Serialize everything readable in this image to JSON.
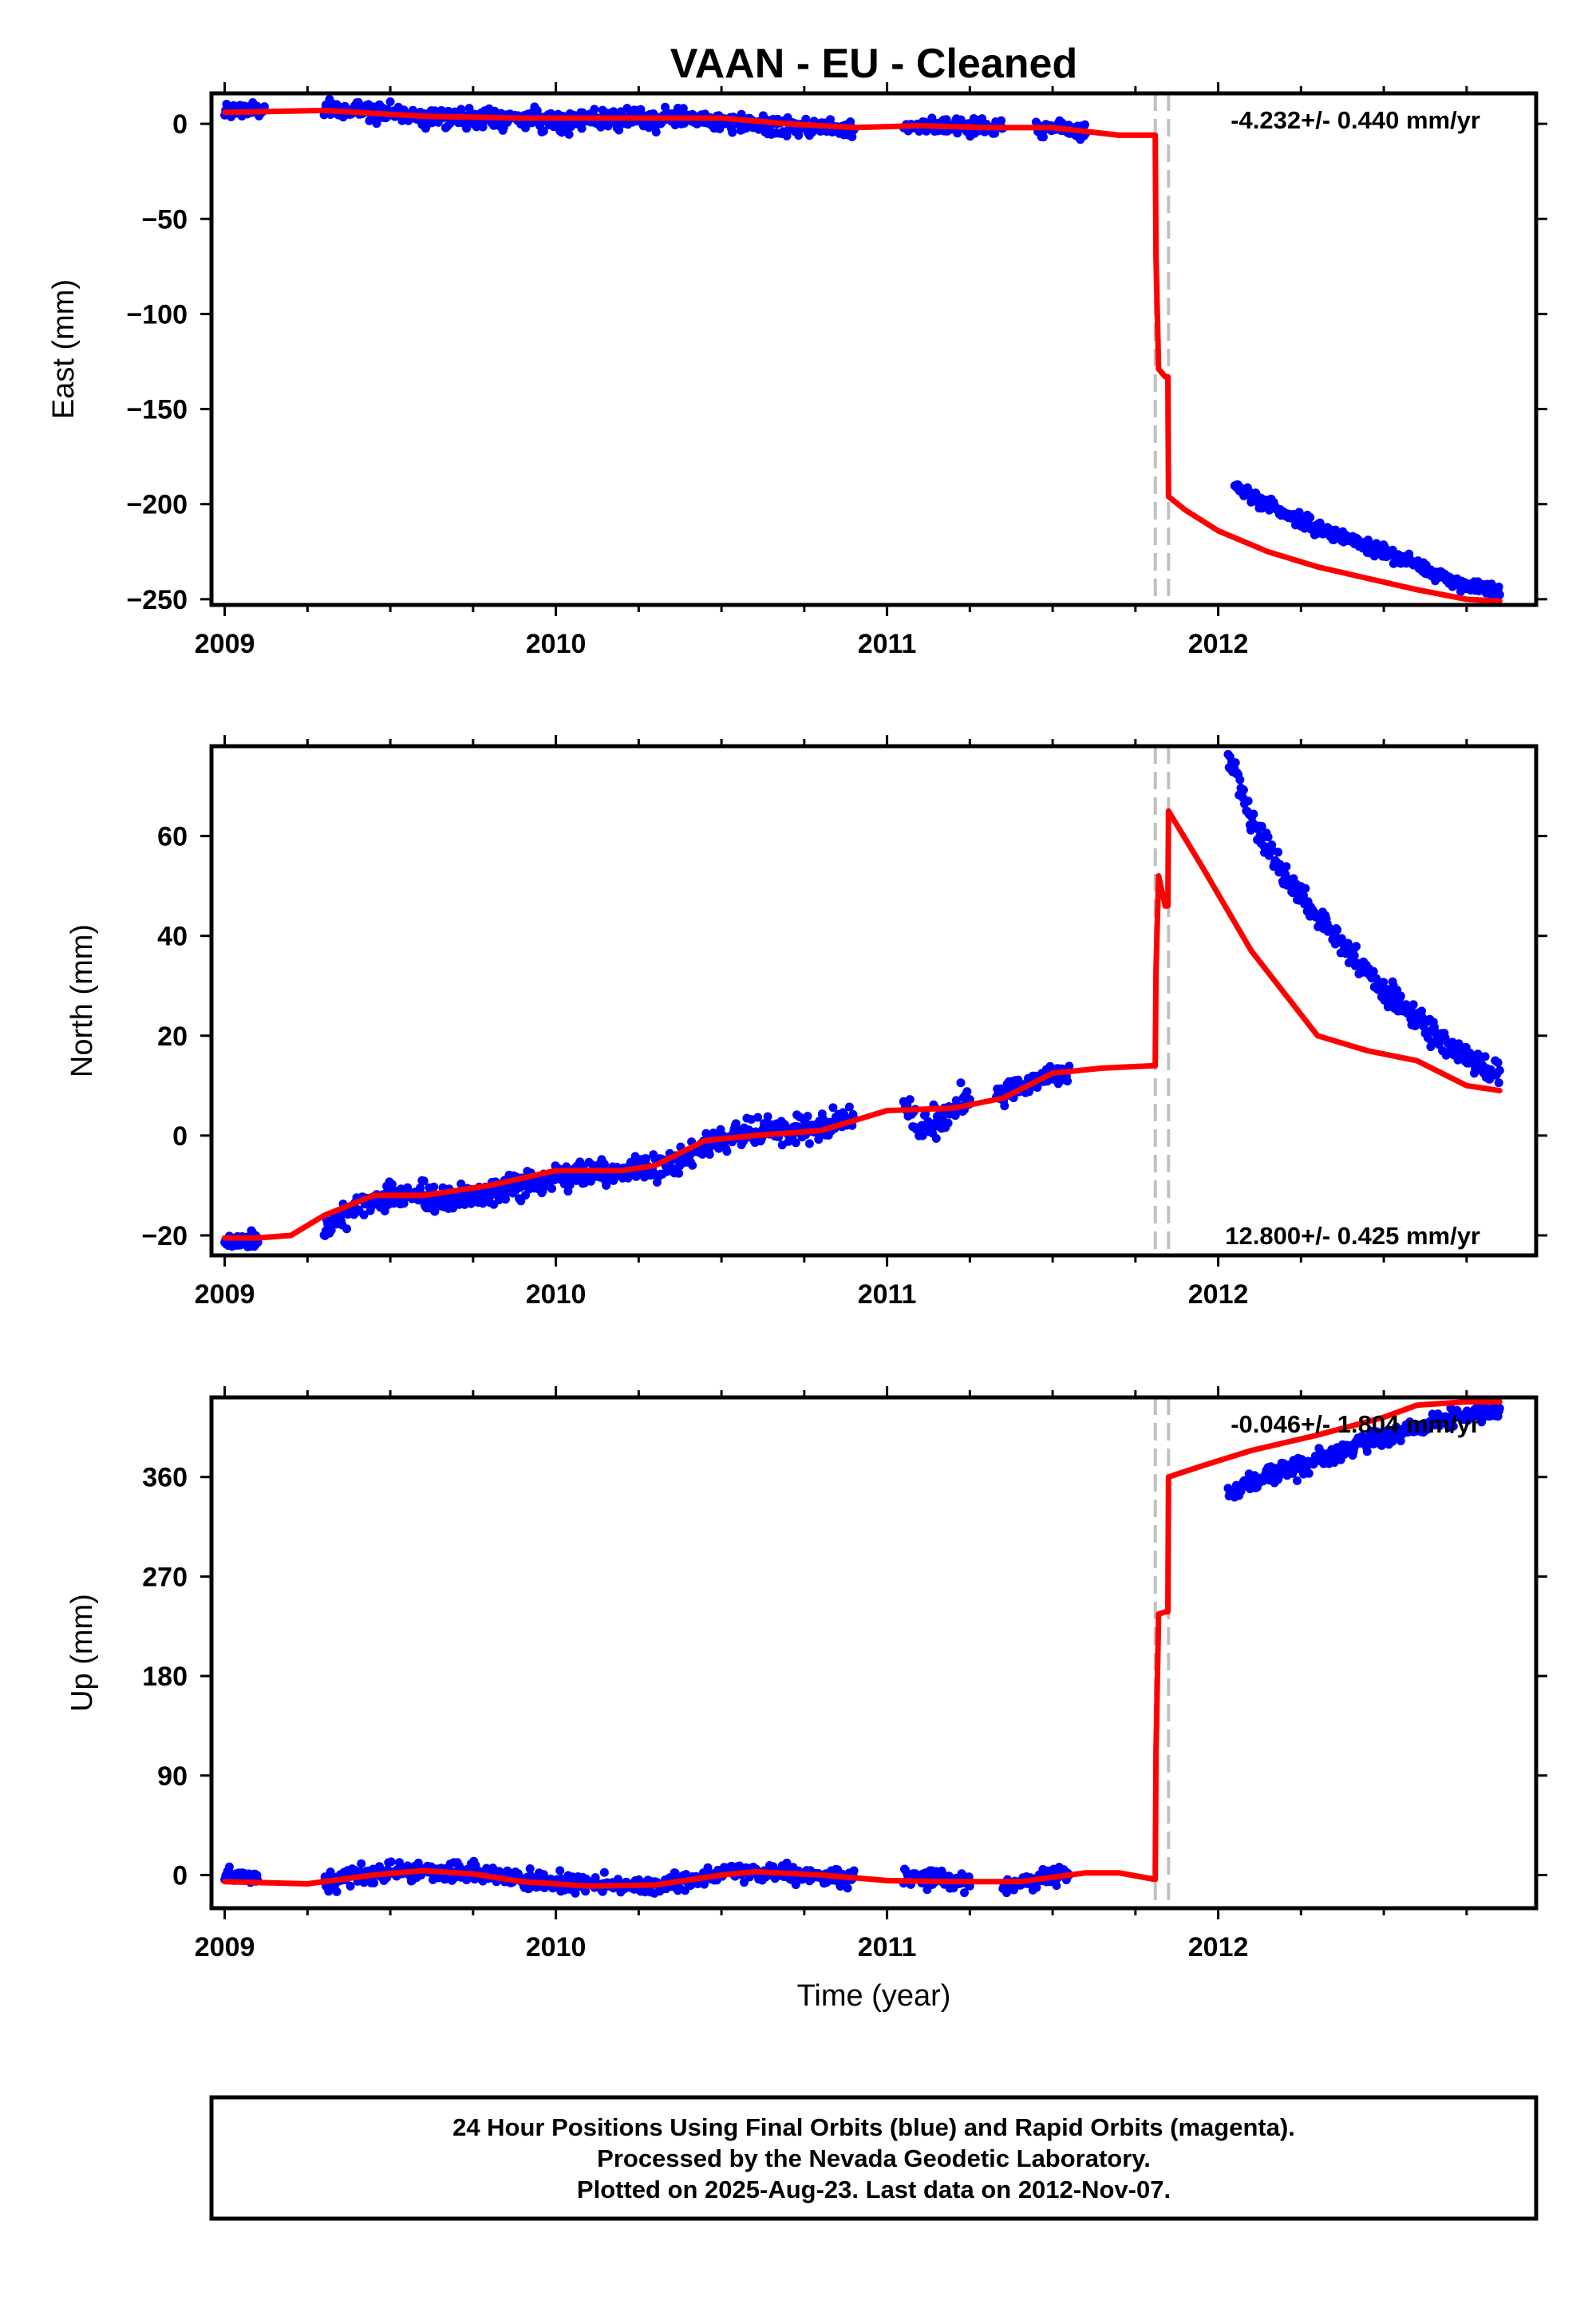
{
  "title": "VAAN  - EU - Cleaned",
  "xlabel": "Time (year)",
  "footer": {
    "line1": "24 Hour Positions Using Final Orbits (blue) and Rapid Orbits (magenta).",
    "line2": "Processed by the Nevada Geodetic Laboratory.",
    "line3": "Plotted on 2025-Aug-23. Last data on 2012-Nov-07."
  },
  "colors": {
    "data_points": "#0000ff",
    "model_line": "#ff0000",
    "step_lines": "#c0c0c0"
  },
  "chart_data": [
    {
      "type": "scatter",
      "component": "east",
      "ylabel": "East (mm)",
      "rate_label": "-4.232+/- 0.440 mm/yr",
      "rate_position": "top-right",
      "xlim": [
        2008.96,
        2012.96
      ],
      "ylim": [
        -253,
        16
      ],
      "x_ticks": [
        2009,
        2010,
        2011,
        2012
      ],
      "y_ticks": [
        -250,
        -200,
        -150,
        -100,
        -50,
        0
      ],
      "step_epochs": [
        2011.81,
        2011.85
      ],
      "observed": {
        "name": "24 Hour Positions (final orbits)",
        "segments": [
          {
            "x": [
              2009.0,
              2009.05,
              2009.1,
              2009.12
            ],
            "y": [
              6,
              8,
              7,
              7
            ],
            "noise": 2.2
          },
          {
            "x": [
              2009.3,
              2009.45,
              2009.6,
              2009.8,
              2010.0,
              2010.2,
              2010.4,
              2010.55,
              2010.7,
              2010.9
            ],
            "y": [
              7,
              7,
              4,
              3,
              2,
              2,
              3,
              0,
              -2,
              -2
            ],
            "noise": 2.4
          },
          {
            "x": [
              2011.05,
              2011.2,
              2011.35
            ],
            "y": [
              -1,
              -1,
              -2
            ],
            "noise": 2.0
          },
          {
            "x": [
              2011.45,
              2011.55,
              2011.6
            ],
            "y": [
              -2,
              -3,
              -4
            ],
            "noise": 2.0
          },
          {
            "x": [
              2012.05,
              2012.15,
              2012.3,
              2012.45,
              2012.6,
              2012.7,
              2012.8,
              2012.85
            ],
            "y": [
              -190,
              -200,
              -213,
              -222,
              -232,
              -240,
              -245,
              -246
            ],
            "noise": 1.8
          }
        ]
      },
      "model": {
        "name": "model",
        "x": [
          2009.0,
          2009.3,
          2009.6,
          2009.9,
          2010.2,
          2010.5,
          2010.7,
          2010.9,
          2011.1,
          2011.3,
          2011.5,
          2011.7,
          2011.81,
          2011.812,
          2011.82,
          2011.84,
          2011.848,
          2011.85,
          2011.9,
          2012.0,
          2012.15,
          2012.3,
          2012.45,
          2012.6,
          2012.75,
          2012.85
        ],
        "y": [
          6,
          7,
          4,
          3,
          3,
          3,
          0,
          -2,
          -1,
          -2,
          -2,
          -6,
          -6,
          -70,
          -129,
          -133,
          -133,
          -196,
          -203,
          -214,
          -225,
          -233,
          -239,
          -245,
          -250,
          -251
        ]
      }
    },
    {
      "type": "scatter",
      "component": "north",
      "ylabel": "North (mm)",
      "rate_label": "12.800+/- 0.425 mm/yr",
      "rate_position": "bottom-right",
      "xlim": [
        2008.96,
        2012.96
      ],
      "ylim": [
        -24,
        78
      ],
      "x_ticks": [
        2009,
        2010,
        2011,
        2012
      ],
      "y_ticks": [
        -20,
        0,
        20,
        40,
        60
      ],
      "step_epochs": [
        2011.81,
        2011.85
      ],
      "observed": {
        "name": "24 Hour Positions (final orbits)",
        "segments": [
          {
            "x": [
              2009.0,
              2009.05,
              2009.1
            ],
            "y": [
              -21,
              -21,
              -21
            ],
            "noise": 1.0
          },
          {
            "x": [
              2009.3,
              2009.4,
              2009.5,
              2009.7,
              2009.9,
              2010.1,
              2010.3,
              2010.45,
              2010.6,
              2010.75,
              2010.9
            ],
            "y": [
              -19,
              -14,
              -12,
              -13,
              -10,
              -7,
              -7,
              -2,
              1,
              1,
              4
            ],
            "noise": 1.3
          },
          {
            "x": [
              2011.05,
              2011.1,
              2011.15,
              2011.2,
              2011.25
            ],
            "y": [
              6,
              1,
              3,
              5,
              6
            ],
            "noise": 1.6
          },
          {
            "x": [
              2011.33,
              2011.45,
              2011.55
            ],
            "y": [
              8,
              11,
              13
            ],
            "noise": 1.0
          },
          {
            "x": [
              2012.03,
              2012.1,
              2012.2,
              2012.3,
              2012.4,
              2012.5,
              2012.6,
              2012.7,
              2012.8,
              2012.85
            ],
            "y": [
              76,
              63,
              52,
              44,
              36,
              29,
              24,
              18,
              14,
              12
            ],
            "noise": 1.3
          }
        ]
      },
      "model": {
        "name": "model",
        "x": [
          2009.0,
          2009.1,
          2009.2,
          2009.3,
          2009.45,
          2009.6,
          2009.8,
          2010.0,
          2010.2,
          2010.3,
          2010.45,
          2010.6,
          2010.8,
          2011.0,
          2011.2,
          2011.35,
          2011.5,
          2011.65,
          2011.81,
          2011.812,
          2011.82,
          2011.84,
          2011.848,
          2011.85,
          2011.95,
          2012.1,
          2012.3,
          2012.45,
          2012.6,
          2012.75,
          2012.85
        ],
        "y": [
          -20.5,
          -20.5,
          -20,
          -16,
          -12,
          -12,
          -10,
          -7,
          -7,
          -6,
          -1,
          0,
          1,
          5,
          5.5,
          7.5,
          12.5,
          13.5,
          14,
          33,
          52,
          46,
          46,
          65,
          54,
          37,
          20,
          17,
          15,
          10,
          9
        ]
      }
    },
    {
      "type": "scatter",
      "component": "up",
      "ylabel": "Up (mm)",
      "rate_label": "-0.046+/- 1.804 mm/yr",
      "rate_position": "top-right",
      "xlim": [
        2008.96,
        2012.96
      ],
      "ylim": [
        -30,
        432
      ],
      "x_ticks": [
        2009,
        2010,
        2011,
        2012
      ],
      "y_ticks": [
        0,
        90,
        180,
        270,
        360
      ],
      "step_epochs": [
        2011.81,
        2011.85
      ],
      "observed": {
        "name": "24 Hour Positions (final orbits)",
        "segments": [
          {
            "x": [
              2009.0,
              2009.05,
              2009.1
            ],
            "y": [
              0,
              -2,
              -2
            ],
            "noise": 3.0
          },
          {
            "x": [
              2009.3,
              2009.45,
              2009.6,
              2009.75,
              2009.9,
              2010.05,
              2010.25,
              2010.4,
              2010.55,
              2010.7,
              2010.9
            ],
            "y": [
              -5,
              0,
              3,
              2,
              -5,
              -9,
              -10,
              -5,
              3,
              1,
              -4
            ],
            "noise": 4.0
          },
          {
            "x": [
              2011.05,
              2011.15,
              2011.25
            ],
            "y": [
              -2,
              -3,
              -7
            ],
            "noise": 5.0
          },
          {
            "x": [
              2011.35,
              2011.45,
              2011.55
            ],
            "y": [
              -10,
              -5,
              2
            ],
            "noise": 4.0
          },
          {
            "x": [
              2012.03,
              2012.15,
              2012.3,
              2012.45,
              2012.6,
              2012.75,
              2012.85
            ],
            "y": [
              345,
              362,
              375,
              392,
              405,
              418,
              418
            ],
            "noise": 4.0
          }
        ]
      },
      "model": {
        "name": "model",
        "x": [
          2009.0,
          2009.25,
          2009.45,
          2009.6,
          2009.75,
          2009.9,
          2010.1,
          2010.3,
          2010.5,
          2010.6,
          2010.8,
          2011.0,
          2011.2,
          2011.4,
          2011.6,
          2011.7,
          2011.81,
          2011.812,
          2011.82,
          2011.84,
          2011.848,
          2011.85,
          2011.95,
          2012.1,
          2012.3,
          2012.5,
          2012.6,
          2012.75,
          2012.85
        ],
        "y": [
          -6,
          -8,
          0,
          4,
          1,
          -6,
          -10,
          -9,
          0,
          3,
          0,
          -5,
          -6,
          -6,
          2,
          2,
          -4,
          110,
          236,
          238,
          238,
          360,
          370,
          384,
          398,
          414,
          425,
          428,
          428
        ]
      }
    }
  ]
}
